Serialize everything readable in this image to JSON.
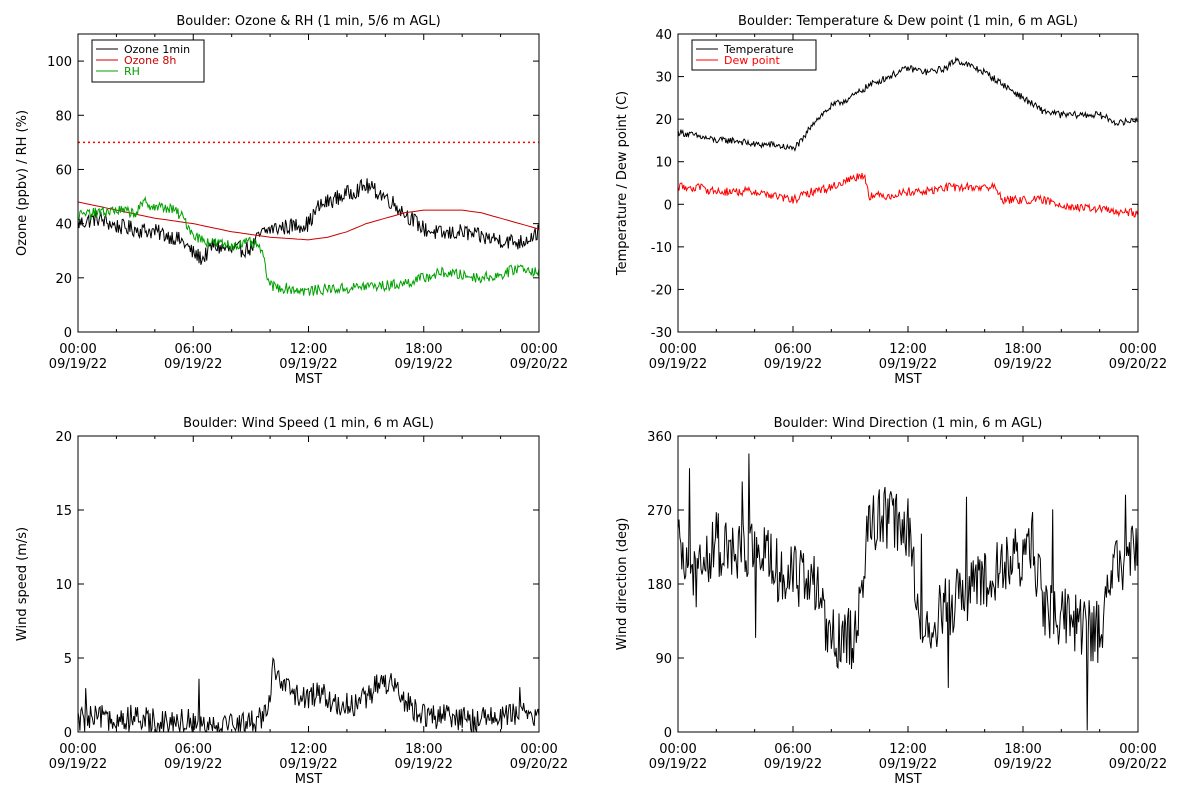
{
  "chart_data": [
    {
      "id": "ozone",
      "type": "line",
      "title": "Boulder: Ozone & RH (1 min, 5/6 m AGL)",
      "xlabel": "MST",
      "ylabel": "Ozone (ppbv) / RH (%)",
      "xlim": [
        "09/19/22 00:00",
        "09/20/22 00:00"
      ],
      "ylim": [
        0,
        110
      ],
      "yticks": [
        0,
        20,
        40,
        60,
        80,
        100
      ],
      "xtick_labels": [
        {
          "time": "00:00",
          "date": "09/19/22"
        },
        {
          "time": "06:00",
          "date": "09/19/22"
        },
        {
          "time": "12:00",
          "date": "09/19/22"
        },
        {
          "time": "18:00",
          "date": "09/19/22"
        },
        {
          "time": "00:00",
          "date": "09/20/22"
        }
      ],
      "legend": {
        "position": "top-left",
        "boxed": true
      },
      "reference_lines": [
        {
          "y": 70,
          "color": "#ff0000",
          "style": "dotted"
        }
      ],
      "series": [
        {
          "name": "Ozone 1min",
          "color": "#000000",
          "noisy": true,
          "x_hours": [
            0,
            1,
            2,
            3,
            4,
            5,
            5.5,
            6,
            6.5,
            7,
            8,
            9,
            9.5,
            10,
            11,
            12,
            12.5,
            13,
            14,
            15,
            15.5,
            16,
            17,
            18,
            19,
            20,
            21,
            22,
            23,
            24
          ],
          "values": [
            40,
            42,
            39,
            38,
            37,
            35,
            33,
            29,
            27,
            32,
            30,
            31,
            36,
            38,
            39,
            40,
            46,
            48,
            51,
            54,
            52,
            50,
            44,
            38,
            36,
            37,
            35,
            34,
            33,
            37
          ]
        },
        {
          "name": "Ozone 8h",
          "color": "#cc0000",
          "noisy": false,
          "x_hours": [
            0,
            2,
            4,
            6,
            8,
            10,
            12,
            13,
            14,
            15,
            16,
            17,
            18,
            19,
            20,
            21,
            22,
            23,
            24
          ],
          "values": [
            48,
            45,
            42,
            40,
            37,
            35,
            34,
            35,
            37,
            40,
            42,
            44,
            45,
            45,
            45,
            44,
            42,
            40,
            38
          ]
        },
        {
          "name": "RH",
          "color": "#00a000",
          "noisy": true,
          "x_hours": [
            0,
            1,
            2,
            3,
            3.5,
            4,
            4.5,
            5,
            5.5,
            6,
            6.5,
            7,
            8,
            9,
            9.5,
            10,
            11,
            12,
            13,
            14,
            15,
            16,
            17,
            18,
            19,
            20,
            21,
            22,
            23,
            24
          ],
          "values": [
            43,
            44,
            45,
            44,
            48,
            46,
            46,
            45,
            42,
            36,
            34,
            33,
            32,
            33,
            31,
            17,
            16,
            15,
            16,
            16,
            17,
            17,
            18,
            20,
            22,
            21,
            20,
            21,
            24,
            22
          ]
        }
      ]
    },
    {
      "id": "temperature",
      "type": "line",
      "title": "Boulder: Temperature & Dew point (1 min, 6 m AGL)",
      "xlabel": "MST",
      "ylabel": "Temperature / Dew point (C)",
      "xlim": [
        "09/19/22 00:00",
        "09/20/22 00:00"
      ],
      "ylim": [
        -30,
        40
      ],
      "yticks": [
        -30,
        -20,
        -10,
        0,
        10,
        20,
        30,
        40
      ],
      "xtick_labels": [
        {
          "time": "00:00",
          "date": "09/19/22"
        },
        {
          "time": "06:00",
          "date": "09/19/22"
        },
        {
          "time": "12:00",
          "date": "09/19/22"
        },
        {
          "time": "18:00",
          "date": "09/19/22"
        },
        {
          "time": "00:00",
          "date": "09/20/22"
        }
      ],
      "legend": {
        "position": "top-left",
        "boxed": true
      },
      "series": [
        {
          "name": "Temperature",
          "color": "#000000",
          "noisy": true,
          "x_hours": [
            0,
            1,
            2,
            3,
            4,
            5,
            6,
            6.5,
            7,
            8,
            9,
            10,
            11,
            12,
            13,
            14,
            14.5,
            15,
            16,
            17,
            18,
            19,
            20,
            21,
            22,
            23,
            24
          ],
          "values": [
            17,
            16,
            15,
            15,
            14,
            14,
            13,
            15,
            19,
            23,
            25,
            28,
            30,
            32,
            31,
            32,
            34,
            33,
            31,
            28,
            25,
            22,
            21,
            21,
            21,
            19,
            20
          ]
        },
        {
          "name": "Dew point",
          "color": "#ff0000",
          "noisy": true,
          "x_hours": [
            0,
            1,
            2,
            3,
            4,
            5,
            6,
            7,
            8,
            9,
            9.7,
            10,
            11,
            12,
            13,
            14,
            15,
            16,
            16.5,
            17,
            18,
            19,
            20,
            21,
            22,
            23,
            24
          ],
          "values": [
            4,
            4,
            3,
            3,
            3,
            2,
            1,
            3,
            4,
            6,
            7,
            2,
            2,
            3,
            3,
            4,
            4,
            4,
            4,
            1,
            1,
            1,
            0,
            -1,
            -1,
            -2,
            -2
          ]
        }
      ]
    },
    {
      "id": "windspeed",
      "type": "line",
      "title": "Boulder: Wind Speed (1 min, 6 m AGL)",
      "xlabel": "MST",
      "ylabel": "Wind speed (m/s)",
      "xlim": [
        "09/19/22 00:00",
        "09/20/22 00:00"
      ],
      "ylim": [
        0,
        20
      ],
      "yticks": [
        0,
        5,
        10,
        15,
        20
      ],
      "xtick_labels": [
        {
          "time": "00:00",
          "date": "09/19/22"
        },
        {
          "time": "06:00",
          "date": "09/19/22"
        },
        {
          "time": "12:00",
          "date": "09/19/22"
        },
        {
          "time": "18:00",
          "date": "09/19/22"
        },
        {
          "time": "00:00",
          "date": "09/20/22"
        }
      ],
      "legend": null,
      "series": [
        {
          "name": "",
          "color": "#000000",
          "noisy": true,
          "x_hours": [
            0,
            1,
            2,
            3,
            4,
            5,
            6,
            7,
            8,
            9,
            9.5,
            10,
            10.2,
            10.5,
            11,
            11.5,
            12,
            12.5,
            13,
            14,
            15,
            15.5,
            16,
            16.5,
            17,
            18,
            19,
            20,
            21,
            22,
            23,
            24
          ],
          "values": [
            0.8,
            0.9,
            1.0,
            0.8,
            0.8,
            0.7,
            0.8,
            0.5,
            0.5,
            0.6,
            1.0,
            2.2,
            5.0,
            3.0,
            2.8,
            2.5,
            2.0,
            3.0,
            2.0,
            1.8,
            2.2,
            3.0,
            3.5,
            2.8,
            2.0,
            1.2,
            1.0,
            0.8,
            0.9,
            1.0,
            1.2,
            1.0
          ]
        }
      ]
    },
    {
      "id": "winddir",
      "type": "line",
      "title": "Boulder: Wind Direction (1 min, 6 m AGL)",
      "xlabel": "MST",
      "ylabel": "Wind direction (deg)",
      "xlim": [
        "09/19/22 00:00",
        "09/20/22 00:00"
      ],
      "ylim": [
        0,
        360
      ],
      "yticks": [
        0,
        90,
        180,
        270,
        360
      ],
      "xtick_labels": [
        {
          "time": "00:00",
          "date": "09/19/22"
        },
        {
          "time": "06:00",
          "date": "09/19/22"
        },
        {
          "time": "12:00",
          "date": "09/19/22"
        },
        {
          "time": "18:00",
          "date": "09/19/22"
        },
        {
          "time": "00:00",
          "date": "09/20/22"
        }
      ],
      "legend": null,
      "series": [
        {
          "name": "",
          "color": "#000000",
          "noisy": true,
          "x_hours": [
            0,
            1,
            2,
            3,
            4,
            5,
            6,
            7,
            7.5,
            8,
            9,
            9.5,
            10,
            11,
            12,
            12.5,
            13,
            14,
            15,
            16,
            17,
            18,
            18.5,
            19,
            20,
            21,
            22,
            23,
            24
          ],
          "values": [
            220,
            190,
            230,
            210,
            230,
            200,
            190,
            180,
            150,
            120,
            110,
            150,
            260,
            260,
            250,
            150,
            130,
            150,
            170,
            180,
            200,
            215,
            230,
            160,
            140,
            130,
            120,
            210,
            220
          ]
        }
      ]
    }
  ]
}
